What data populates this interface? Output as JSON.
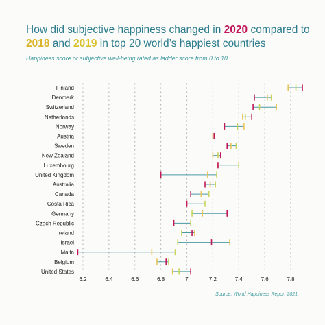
{
  "header": {
    "title_part1": "How did subjective happiness changed in ",
    "title_2020": "2020",
    "title_part2": " compared to ",
    "title_2018": "2018",
    "title_part3": " and ",
    "title_2019": "2019",
    "title_part4": " in top 20 world’s happiest countries",
    "subtitle": "Happiness score or subjective well-being rated as ladder score from 0 to 10"
  },
  "source": "Source: World Happiness Report 2021",
  "colors": {
    "y2018": "#e8c55a",
    "y2019": "#c9d45a",
    "y2020": "#c2185b",
    "connector": "#4a9aa5",
    "grid": "#b8b8b8"
  },
  "chart_data": {
    "type": "dumbbell",
    "title": "How did subjective happiness changed in 2020 compared to 2018 and 2019 in top 20 world’s happiest countries",
    "subtitle": "Happiness score or subjective well-being rated as ladder score from 0 to 10",
    "xlim": [
      6.15,
      7.87
    ],
    "xticks": [
      "6.2",
      "6.4",
      "6.6",
      "6.8",
      "7",
      "7.2",
      "7.4",
      "7.6",
      "7.8"
    ],
    "grid": "vertical dotted",
    "categories": [
      "Finland",
      "Denmark",
      "Switzerland",
      "Netherlands",
      "Norway",
      "Austria",
      "Sweden",
      "New Zealand",
      "Luxembourg",
      "United Kingdom",
      "Australia",
      "Canada",
      "Costa Rica",
      "Germany",
      "Czech Republic",
      "Ireland",
      "Israel",
      "Malta",
      "Belgium",
      "United States"
    ],
    "series": [
      {
        "name": "2018",
        "values": [
          7.78,
          7.62,
          7.69,
          7.43,
          7.44,
          7.2,
          7.34,
          7.2,
          7.24,
          7.16,
          7.18,
          7.11,
          7.0,
          7.12,
          7.03,
          7.06,
          7.33,
          6.73,
          6.77,
          6.89
        ]
      },
      {
        "name": "2019",
        "values": [
          7.84,
          7.65,
          7.56,
          7.45,
          7.39,
          7.21,
          7.38,
          7.24,
          7.4,
          7.23,
          7.22,
          7.17,
          7.14,
          7.04,
          7.03,
          6.96,
          6.93,
          6.91,
          6.86,
          6.94
        ]
      },
      {
        "name": "2020",
        "values": [
          7.89,
          7.52,
          7.51,
          7.5,
          7.29,
          7.21,
          7.31,
          7.26,
          7.24,
          6.8,
          7.14,
          7.03,
          7.0,
          7.31,
          6.9,
          7.04,
          7.19,
          6.16,
          6.84,
          7.03
        ]
      }
    ]
  }
}
